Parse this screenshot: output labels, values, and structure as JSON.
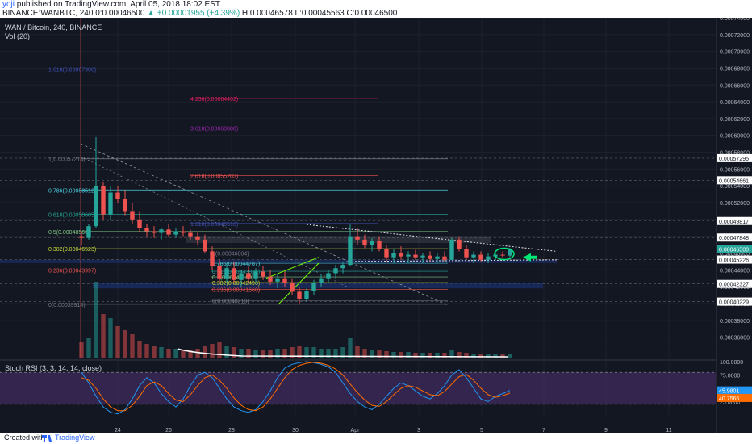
{
  "header": {
    "author": "yoji",
    "published": " published on TradingView.com, April 05, 2018 18:02 EST",
    "symbol_line": "BINANCE:WANBTC, 240  0:0.00046500",
    "change": "▲ +0.00001955 (+4.39%)",
    "hlc": " H:0.00046578  L:0.00045563  C:0.00046500"
  },
  "legend": {
    "title": "WAN / Bitcoin, 240, BINANCE",
    "volume": "Vol (20)"
  },
  "rsi_legend": "Stoch RSI (3, 3, 14, 14, close)",
  "footer": {
    "created": "Created with",
    "brand": "TradingView"
  },
  "colors": {
    "background": "#131722",
    "up": "#26a69a",
    "down": "#ef5350",
    "rsi_k": "#2196f3",
    "rsi_d": "#ff6d00",
    "rsi_band": "#4a2f6b"
  },
  "chart_data": [
    {
      "type": "candlestick",
      "ylim": [
        0.00035,
        0.00074
      ],
      "price_ticks": [
        "0.00074000",
        "0.00072000",
        "0.00070000",
        "0.00068000",
        "0.00066000",
        "0.00064000",
        "0.00062000",
        "0.00060000",
        "0.00058000",
        "0.00056000",
        "0.00054000",
        "0.00052000",
        "0.00050000",
        "0.00048000",
        "0.00046000",
        "0.00044000",
        "0.00042000",
        "0.00040000",
        "0.00038000",
        "0.00036000"
      ],
      "price_tags": [
        {
          "label": "0.00057295",
          "value": 0.00057295
        },
        {
          "label": "0.00054661",
          "value": 0.00054661
        },
        {
          "label": "0.00049817",
          "value": 0.00049817
        },
        {
          "label": "0.00047848",
          "value": 0.00047848
        },
        {
          "label": "0.00046500",
          "value": 0.000465
        },
        {
          "label": "0.00045226",
          "value": 0.00045226
        },
        {
          "label": "0.00042327",
          "value": 0.00042327
        },
        {
          "label": "0.00040229",
          "value": 0.00040229
        }
      ],
      "x_ticks": [
        "24",
        "26",
        "28",
        "30",
        "Apr",
        "3",
        "5",
        "7",
        "9",
        "11"
      ],
      "fib_left": [
        {
          "label": "1.618(0.00067908)",
          "value": 0.00067908,
          "color": "#3f51b5"
        },
        {
          "label": "1(0.00057214)",
          "value": 0.00057214,
          "color": "#787b86"
        },
        {
          "label": "0.786(0.00053512)",
          "value": 0.00053512,
          "color": "#4dd0e1"
        },
        {
          "label": "0.618(0.00050605)",
          "value": 0.00050605,
          "color": "#26a69a"
        },
        {
          "label": "0.5(0.00048560)",
          "value": 0.0004856,
          "color": "#81c784"
        },
        {
          "label": "0.382(0.00046523)",
          "value": 0.00046523,
          "color": "#cddc39"
        },
        {
          "label": "0.236(0.00043997)",
          "value": 0.00043997,
          "color": "#ef5350"
        },
        {
          "label": "0(0.00039914)",
          "value": 0.00039914,
          "color": "#787b86"
        }
      ],
      "fib_ext": [
        {
          "label": "4.236(0.00064402)",
          "value": 0.00064402,
          "color": "#e91e63"
        },
        {
          "label": "3.618(0.00060888)",
          "value": 0.00060888,
          "color": "#9c27b0"
        },
        {
          "label": "2.618(0.00055203)",
          "value": 0.00055203,
          "color": "#ef5350"
        },
        {
          "label": "1.618(0.00049518)",
          "value": 0.00049518,
          "color": "#3f51b5"
        }
      ],
      "fib_mid": [
        {
          "label": "1(0.00046004)",
          "value": 0.00046004,
          "color": "#787b86"
        },
        {
          "label": "0.786(0.00044787)",
          "value": 0.00044787,
          "color": "#4dd0e1"
        },
        {
          "label": "0.618(0.00043831)",
          "value": 0.00043831,
          "color": "#26a69a"
        },
        {
          "label": "0.5(0.00043160)",
          "value": 0.0004316,
          "color": "#81c784"
        },
        {
          "label": "0.382(0.00042490)",
          "value": 0.0004249,
          "color": "#cddc39"
        },
        {
          "label": "0.236(0.00041660)",
          "value": 0.0004166,
          "color": "#ef5350"
        },
        {
          "label": "0(0.00040319)",
          "value": 0.00040319,
          "color": "#787b86"
        }
      ],
      "candles": [
        [
          0.00048,
          0.000485,
          0.00047,
          0.000478
        ],
        [
          0.000478,
          0.000495,
          0.000476,
          0.000492
        ],
        [
          0.000492,
          0.000598,
          0.00049,
          0.00054
        ],
        [
          0.00054,
          0.000545,
          0.0005,
          0.000506
        ],
        [
          0.000506,
          0.00054,
          0.0005,
          0.000532
        ],
        [
          0.000532,
          0.00054,
          0.00052,
          0.000524
        ],
        [
          0.000524,
          0.000535,
          0.000505,
          0.00051
        ],
        [
          0.00051,
          0.00052,
          0.000495,
          0.0005
        ],
        [
          0.0005,
          0.00051,
          0.000485,
          0.00049
        ],
        [
          0.00049,
          0.000495,
          0.00048,
          0.000486
        ],
        [
          0.000486,
          0.000492,
          0.000478,
          0.000484
        ],
        [
          0.000484,
          0.00049,
          0.000476,
          0.000488
        ],
        [
          0.000488,
          0.000494,
          0.00048,
          0.000482
        ],
        [
          0.000482,
          0.00049,
          0.000478,
          0.000486
        ],
        [
          0.000486,
          0.000492,
          0.00048,
          0.000484
        ],
        [
          0.000484,
          0.000488,
          0.000476,
          0.00048
        ],
        [
          0.00048,
          0.000486,
          0.00047,
          0.000476
        ],
        [
          0.000476,
          0.000482,
          0.00046,
          0.000462
        ],
        [
          0.000462,
          0.000468,
          0.00044,
          0.000445
        ],
        [
          0.000445,
          0.000452,
          0.000425,
          0.00043
        ],
        [
          0.00043,
          0.000448,
          0.000425,
          0.000442
        ],
        [
          0.000442,
          0.00045,
          0.000425,
          0.000428
        ],
        [
          0.000428,
          0.00044,
          0.00042,
          0.000436
        ],
        [
          0.000436,
          0.000444,
          0.000425,
          0.00043
        ],
        [
          0.00043,
          0.000442,
          0.000424,
          0.000438
        ],
        [
          0.000438,
          0.000445,
          0.000428,
          0.000432
        ],
        [
          0.000432,
          0.00044,
          0.000422,
          0.000426
        ],
        [
          0.000426,
          0.000435,
          0.000418,
          0.00043
        ],
        [
          0.00043,
          0.000438,
          0.00042,
          0.000424
        ],
        [
          0.000424,
          0.00043,
          0.00041,
          0.000414
        ],
        [
          0.000414,
          0.00042,
          0.0004,
          0.000405
        ],
        [
          0.000405,
          0.000418,
          0.000402,
          0.000415
        ],
        [
          0.000415,
          0.000428,
          0.00041,
          0.000425
        ],
        [
          0.000425,
          0.000435,
          0.00042,
          0.00043
        ],
        [
          0.00043,
          0.00044,
          0.000425,
          0.000436
        ],
        [
          0.000436,
          0.000446,
          0.00043,
          0.000442
        ],
        [
          0.000442,
          0.00045,
          0.000436,
          0.000446
        ],
        [
          0.000446,
          0.000494,
          0.000445,
          0.00048
        ],
        [
          0.00048,
          0.00049,
          0.00047,
          0.000476
        ],
        [
          0.000476,
          0.000482,
          0.000466,
          0.00047
        ],
        [
          0.00047,
          0.000478,
          0.000462,
          0.000474
        ],
        [
          0.000474,
          0.00048,
          0.000462,
          0.000465
        ],
        [
          0.000465,
          0.00047,
          0.00045,
          0.000455
        ],
        [
          0.000455,
          0.000465,
          0.000448,
          0.00046
        ],
        [
          0.00046,
          0.000468,
          0.000452,
          0.000456
        ],
        [
          0.000456,
          0.000462,
          0.000448,
          0.000458
        ],
        [
          0.000458,
          0.000464,
          0.000452,
          0.000455
        ],
        [
          0.000455,
          0.00046,
          0.000448,
          0.000457
        ],
        [
          0.000457,
          0.000462,
          0.00045,
          0.000453
        ],
        [
          0.000453,
          0.00046,
          0.000448,
          0.000456
        ],
        [
          0.000456,
          0.000462,
          0.00045,
          0.000452
        ],
        [
          0.000452,
          0.000478,
          0.000452,
          0.000476
        ],
        [
          0.000476,
          0.00048,
          0.000462,
          0.000465
        ],
        [
          0.000465,
          0.00047,
          0.000452,
          0.000455
        ],
        [
          0.000455,
          0.000462,
          0.000448,
          0.000458
        ],
        [
          0.000458,
          0.000462,
          0.00045,
          0.000452
        ],
        [
          0.000452,
          0.00046,
          0.000448,
          0.000456
        ],
        [
          0.000456,
          0.000462,
          0.000452,
          0.000458
        ],
        [
          0.000458,
          0.000462,
          0.000454,
          0.000457
        ],
        [
          0.000457,
          0.000466,
          0.000455,
          0.000465
        ]
      ],
      "volume": [
        0.2,
        0.25,
        0.95,
        0.55,
        0.5,
        0.4,
        0.35,
        0.3,
        0.22,
        0.18,
        0.15,
        0.14,
        0.12,
        0.12,
        0.1,
        0.1,
        0.12,
        0.15,
        0.18,
        0.2,
        0.16,
        0.14,
        0.12,
        0.12,
        0.1,
        0.1,
        0.1,
        0.12,
        0.12,
        0.14,
        0.16,
        0.14,
        0.14,
        0.12,
        0.12,
        0.12,
        0.14,
        0.25,
        0.16,
        0.12,
        0.1,
        0.1,
        0.09,
        0.08,
        0.08,
        0.08,
        0.07,
        0.07,
        0.07,
        0.07,
        0.07,
        0.1,
        0.08,
        0.07,
        0.06,
        0.06,
        0.06,
        0.05,
        0.05,
        0.06
      ]
    },
    {
      "type": "line",
      "title": "Stoch RSI (3, 3, 14, 14, close)",
      "ylim": [
        0,
        100
      ],
      "ticks": [
        "100.0000",
        "75.0000",
        "25.0000"
      ],
      "k_label": "45.9801",
      "d_label": "40.7566",
      "series": [
        {
          "values": [
            80,
            60,
            35,
            15,
            5,
            2,
            10,
            30,
            55,
            70,
            60,
            40,
            25,
            15,
            30,
            55,
            75,
            80,
            70,
            50,
            30,
            15,
            8,
            5,
            10,
            25,
            45,
            70,
            88,
            95,
            98,
            100,
            98,
            95,
            90,
            80,
            60,
            40,
            25,
            15,
            10,
            20,
            35,
            50,
            60,
            55,
            45,
            35,
            30,
            40,
            55,
            75,
            85,
            70,
            50,
            30,
            25,
            35,
            40,
            46
          ]
        },
        {
          "values": [
            70,
            65,
            50,
            30,
            15,
            8,
            8,
            18,
            35,
            55,
            62,
            55,
            40,
            28,
            25,
            38,
            55,
            70,
            75,
            65,
            50,
            32,
            18,
            10,
            8,
            15,
            30,
            50,
            70,
            85,
            93,
            97,
            99,
            97,
            93,
            86,
            75,
            58,
            42,
            28,
            18,
            16,
            25,
            38,
            50,
            55,
            52,
            45,
            38,
            36,
            44,
            58,
            72,
            76,
            65,
            50,
            38,
            33,
            36,
            41
          ]
        }
      ]
    }
  ]
}
